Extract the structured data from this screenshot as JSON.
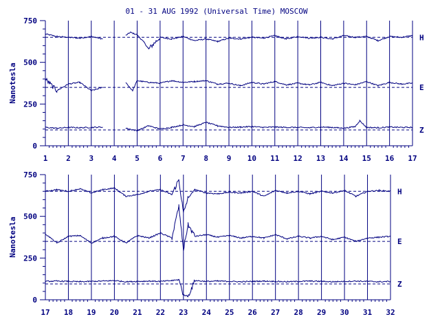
{
  "chart_data": {
    "title": "01 - 31 AUG 1992 (Universal Time) MOSCOW",
    "color": "#000080",
    "panels": [
      {
        "type": "line",
        "ylabel": "Nanotesla",
        "x_ticks": [
          "1",
          "2",
          "3",
          "4",
          "5",
          "6",
          "7",
          "8",
          "9",
          "10",
          "11",
          "12",
          "13",
          "14",
          "15",
          "16",
          "17"
        ],
        "xlim": [
          1,
          17
        ],
        "ylim": [
          0,
          750
        ],
        "y_ticks": [
          "0",
          "250",
          "500",
          "750"
        ],
        "grid": "vertical",
        "series": [
          {
            "name": "H",
            "baseline": 650,
            "x": [
              1.0,
              1.5,
              2.0,
              2.5,
              3.0,
              3.5,
              4.0,
              4.5,
              4.7,
              5.0,
              5.3,
              5.5,
              6.0,
              6.5,
              7.0,
              7.5,
              8.0,
              8.5,
              9.0,
              9.5,
              10.0,
              10.5,
              11.0,
              11.5,
              12.0,
              12.5,
              13.0,
              13.5,
              14.0,
              14.5,
              15.0,
              15.5,
              16.0,
              16.5,
              17.0
            ],
            "values": [
              670,
              655,
              650,
              645,
              655,
              640,
              null,
              660,
              680,
              665,
              620,
              580,
              650,
              640,
              655,
              630,
              640,
              625,
              645,
              640,
              650,
              645,
              660,
              640,
              655,
              645,
              650,
              640,
              660,
              650,
              655,
              630,
              655,
              650,
              660
            ]
          },
          {
            "name": "E",
            "baseline": 350,
            "x": [
              1.0,
              1.5,
              2.0,
              2.5,
              3.0,
              3.5,
              4.0,
              4.5,
              4.8,
              5.0,
              5.5,
              6.0,
              6.5,
              7.0,
              7.5,
              8.0,
              8.5,
              9.0,
              9.5,
              10.0,
              10.5,
              11.0,
              11.5,
              12.0,
              12.5,
              13.0,
              13.5,
              14.0,
              14.5,
              15.0,
              15.5,
              16.0,
              16.5,
              17.0
            ],
            "values": [
              400,
              330,
              370,
              380,
              330,
              350,
              null,
              380,
              330,
              390,
              380,
              375,
              390,
              380,
              385,
              390,
              370,
              375,
              360,
              380,
              370,
              385,
              365,
              375,
              365,
              380,
              360,
              375,
              365,
              385,
              360,
              380,
              370,
              375
            ]
          },
          {
            "name": "Z",
            "baseline": 95,
            "x": [
              1.0,
              1.5,
              2.0,
              2.5,
              3.0,
              3.5,
              4.0,
              4.5,
              5.0,
              5.5,
              6.0,
              6.5,
              7.0,
              7.5,
              8.0,
              8.5,
              9.0,
              9.5,
              10.0,
              10.5,
              11.0,
              11.5,
              12.0,
              12.5,
              13.0,
              13.5,
              14.0,
              14.5,
              14.7,
              15.0,
              15.5,
              16.0,
              16.5,
              17.0
            ],
            "values": [
              110,
              105,
              110,
              108,
              110,
              112,
              null,
              105,
              90,
              120,
              100,
              110,
              125,
              115,
              140,
              120,
              110,
              112,
              115,
              110,
              112,
              110,
              110,
              108,
              112,
              110,
              105,
              115,
              150,
              110,
              108,
              112,
              110,
              110
            ]
          }
        ]
      },
      {
        "type": "line",
        "ylabel": "Nanotesla",
        "x_ticks": [
          "17",
          "18",
          "19",
          "20",
          "21",
          "22",
          "23",
          "24",
          "25",
          "26",
          "27",
          "28",
          "29",
          "30",
          "31",
          "32"
        ],
        "xlim": [
          17,
          32
        ],
        "ylim": [
          0,
          750
        ],
        "y_ticks": [
          "0",
          "250",
          "500",
          "750"
        ],
        "grid": "vertical",
        "series": [
          {
            "name": "H",
            "baseline": 650,
            "x": [
              17.0,
              17.5,
              18.0,
              18.5,
              19.0,
              19.5,
              20.0,
              20.5,
              21.0,
              21.5,
              22.0,
              22.5,
              22.8,
              23.0,
              23.2,
              23.5,
              24.0,
              24.5,
              25.0,
              25.5,
              26.0,
              26.5,
              27.0,
              27.5,
              28.0,
              28.5,
              29.0,
              29.5,
              30.0,
              30.5,
              31.0,
              31.5,
              32.0
            ],
            "values": [
              650,
              660,
              650,
              665,
              640,
              660,
              670,
              620,
              630,
              650,
              660,
              630,
              720,
              520,
              610,
              660,
              640,
              635,
              645,
              640,
              650,
              620,
              655,
              640,
              650,
              635,
              650,
              640,
              655,
              620,
              650,
              655,
              650
            ]
          },
          {
            "name": "E",
            "baseline": 350,
            "x": [
              17.0,
              17.5,
              18.0,
              18.5,
              19.0,
              19.5,
              20.0,
              20.5,
              21.0,
              21.5,
              22.0,
              22.5,
              22.8,
              23.0,
              23.2,
              23.5,
              24.0,
              24.5,
              25.0,
              25.5,
              26.0,
              26.5,
              27.0,
              27.5,
              28.0,
              28.5,
              29.0,
              29.5,
              30.0,
              30.5,
              31.0,
              31.5,
              32.0
            ],
            "values": [
              395,
              340,
              380,
              385,
              340,
              370,
              380,
              340,
              385,
              370,
              400,
              370,
              560,
              300,
              450,
              380,
              390,
              375,
              385,
              370,
              380,
              370,
              390,
              365,
              380,
              370,
              380,
              360,
              375,
              350,
              370,
              375,
              380
            ]
          },
          {
            "name": "Z",
            "baseline": 95,
            "x": [
              17.0,
              17.5,
              18.0,
              18.5,
              19.0,
              19.5,
              20.0,
              20.5,
              21.0,
              21.5,
              22.0,
              22.5,
              22.8,
              23.0,
              23.2,
              23.5,
              24.0,
              24.5,
              25.0,
              25.5,
              26.0,
              26.5,
              27.0,
              27.5,
              28.0,
              28.5,
              29.0,
              29.5,
              30.0,
              30.5,
              31.0,
              31.5,
              32.0
            ],
            "values": [
              110,
              112,
              110,
              108,
              110,
              112,
              115,
              108,
              110,
              112,
              110,
              115,
              120,
              30,
              20,
              115,
              110,
              112,
              110,
              108,
              110,
              112,
              110,
              108,
              110,
              112,
              110,
              108,
              110,
              112,
              110,
              108,
              110
            ]
          }
        ]
      }
    ]
  }
}
